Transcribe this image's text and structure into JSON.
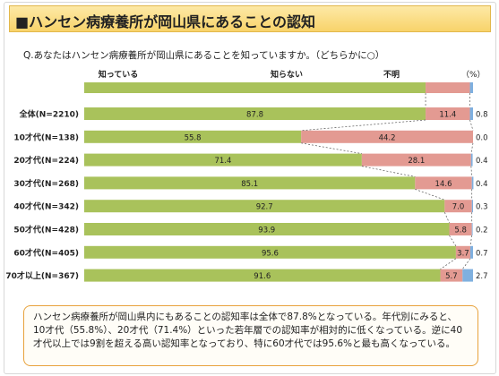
{
  "title": "■ハンセン病療養所が岡山県にあることの認知",
  "question": "Q.あなたはハンセン病療養所が岡山県にあることを知っていますか。（どちらかに○）",
  "unit": "（%）",
  "colors": {
    "know": "#a9c25b",
    "dont_know": "#e39a92",
    "unknown": "#7fb0df",
    "title_bg": "#f8d36a",
    "note_border": "#e8a23c"
  },
  "chart_data": {
    "type": "bar",
    "orientation": "horizontal-stacked-100",
    "series_names": [
      "知っている",
      "知らない",
      "不明"
    ],
    "rows": [
      {
        "label": "全体(N=2210)",
        "values": [
          87.8,
          11.4,
          0.8
        ]
      },
      {
        "label": "10才代(N=138)",
        "values": [
          55.8,
          44.2,
          0.0
        ]
      },
      {
        "label": "20才代(N=224)",
        "values": [
          71.4,
          28.1,
          0.4
        ]
      },
      {
        "label": "30才代(N=268)",
        "values": [
          85.1,
          14.6,
          0.4
        ]
      },
      {
        "label": "40才代(N=342)",
        "values": [
          92.7,
          7.0,
          0.3
        ]
      },
      {
        "label": "50才代(N=428)",
        "values": [
          93.9,
          5.8,
          0.2
        ]
      },
      {
        "label": "60才代(N=405)",
        "values": [
          95.6,
          3.7,
          0.7
        ]
      },
      {
        "label": "70才以上(N=367)",
        "values": [
          91.6,
          5.7,
          2.7
        ]
      }
    ],
    "xlim": [
      0,
      100
    ]
  },
  "note": "ハンセン病療養所が岡山県内にもあることの認知率は全体で87.8%となっている。年代別にみると、10才代（55.8%）、20才代（71.4%）といった若年層での認知率が相対的に低くなっている。逆に40才代以上では9割を超える高い認知率となっており、特に60才代では95.6%と最も高くなっている。"
}
